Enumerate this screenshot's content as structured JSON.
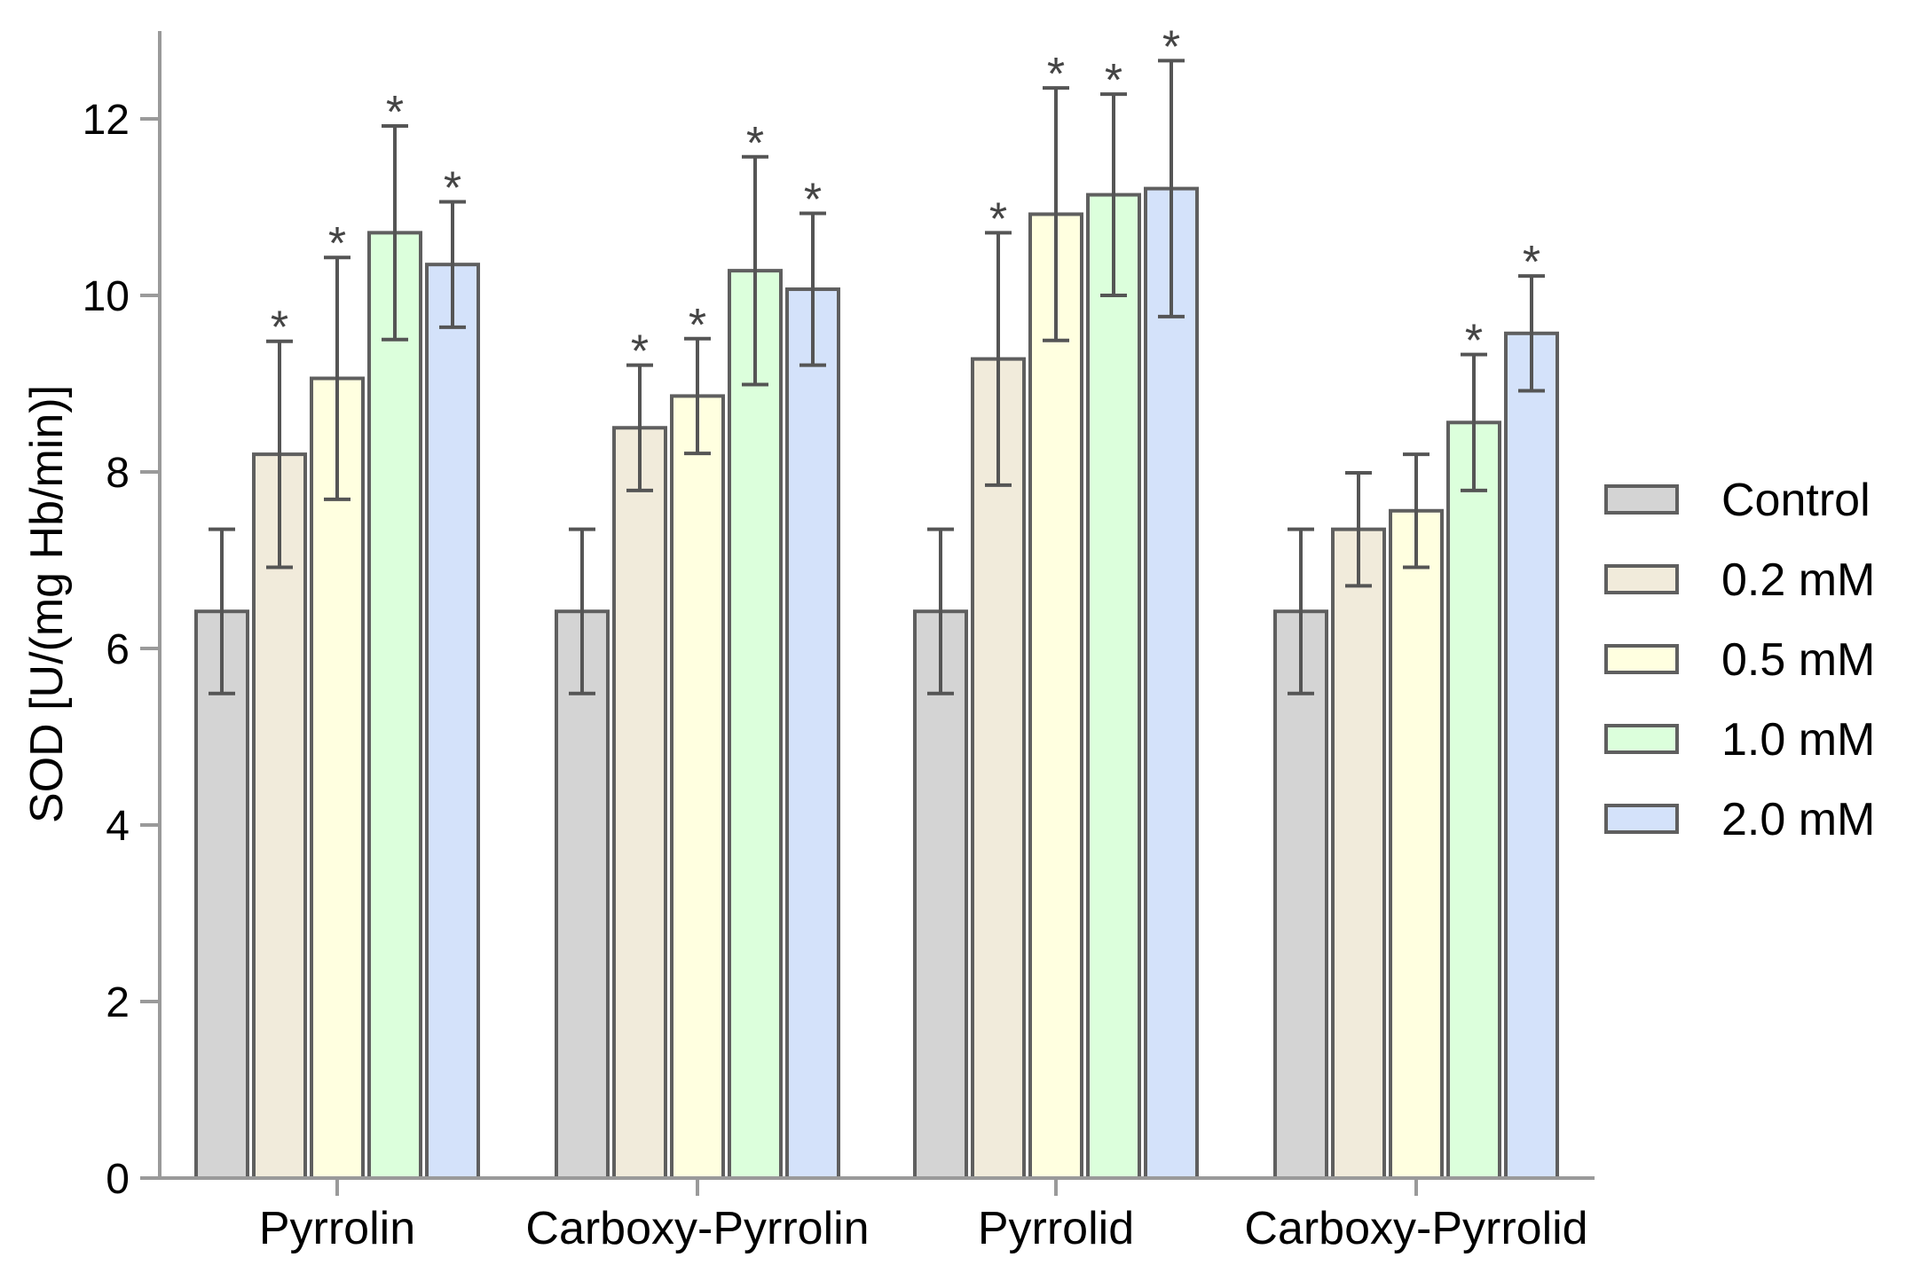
{
  "chart_data": {
    "type": "bar",
    "title": "",
    "xlabel": "",
    "ylabel": "SOD [U/(mg Hb/min)]",
    "ylim": [
      0,
      13
    ],
    "yticks": [
      0,
      2,
      4,
      6,
      8,
      10,
      12
    ],
    "ytick_labels": [
      "0",
      "2",
      "4",
      "6",
      "8",
      "10",
      "12"
    ],
    "categories": [
      "Pyrrolin",
      "Carboxy-Pyrrolin",
      "Pyrrolid",
      "Carboxy-Pyrrolid"
    ],
    "legend_position": "right",
    "significance_marker": "*",
    "series": [
      {
        "name": "Control",
        "color": "#d4d4d4",
        "values": [
          6.42,
          6.42,
          6.42,
          6.42
        ],
        "errors": [
          0.93,
          0.93,
          0.93,
          0.93
        ],
        "significant": [
          false,
          false,
          false,
          false
        ]
      },
      {
        "name": "0.2 mM",
        "color": "#f1ebdb",
        "values": [
          8.2,
          8.5,
          9.28,
          7.35
        ],
        "errors": [
          1.28,
          0.71,
          1.43,
          0.64
        ],
        "significant": [
          true,
          true,
          true,
          false
        ]
      },
      {
        "name": "0.5 mM",
        "color": "#ffffe0",
        "values": [
          9.06,
          8.86,
          10.92,
          7.56
        ],
        "errors": [
          1.37,
          0.65,
          1.43,
          0.64
        ],
        "significant": [
          true,
          true,
          true,
          false
        ]
      },
      {
        "name": "1.0 mM",
        "color": "#dcffdc",
        "values": [
          10.71,
          10.28,
          11.14,
          8.56
        ],
        "errors": [
          1.21,
          1.29,
          1.14,
          0.77
        ],
        "significant": [
          true,
          true,
          true,
          true
        ]
      },
      {
        "name": "2.0 mM",
        "color": "#d4e2fa",
        "values": [
          10.35,
          10.07,
          11.21,
          9.57
        ],
        "errors": [
          0.71,
          0.86,
          1.45,
          0.65
        ],
        "significant": [
          true,
          true,
          true,
          true
        ]
      }
    ]
  }
}
